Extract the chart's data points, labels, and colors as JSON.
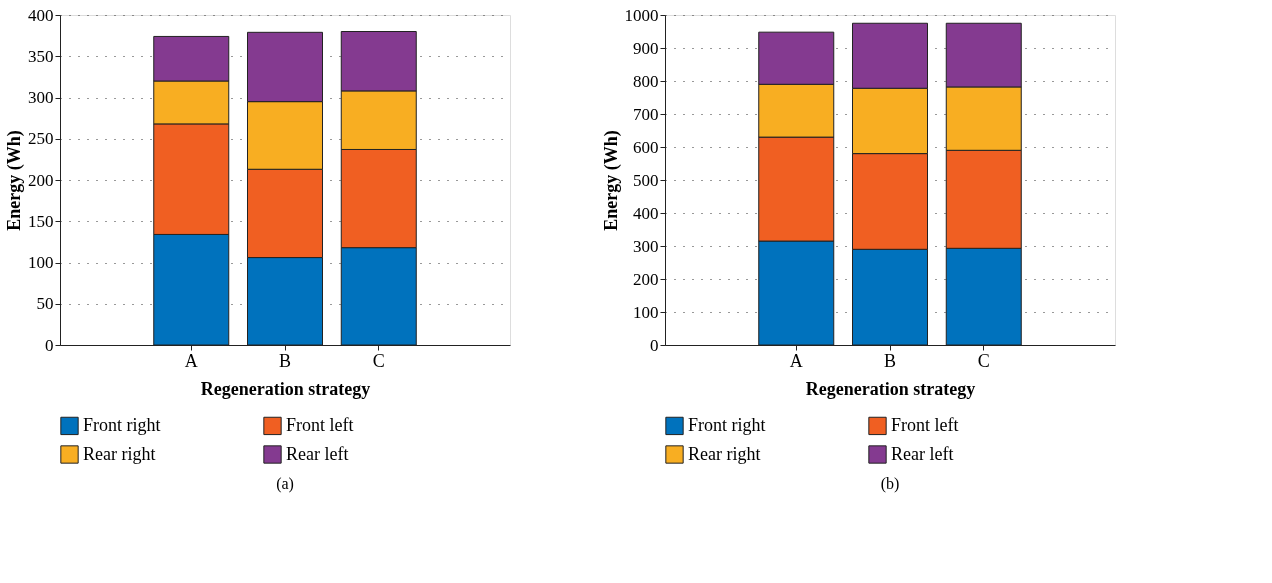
{
  "chart_data": [
    {
      "type": "bar",
      "stacked": true,
      "xlabel": "Regeneration strategy",
      "ylabel": "Energy (Wh)",
      "categories": [
        "A",
        "B",
        "C"
      ],
      "ylim": [
        0,
        400
      ],
      "yticks": [
        0,
        50,
        100,
        150,
        200,
        250,
        300,
        350,
        400
      ],
      "grid": "y",
      "legend": "bottom",
      "annotations": [
        "(a)"
      ],
      "series": [
        {
          "name": "Front right",
          "color": "#0072bd",
          "values": [
            134,
            106,
            118
          ]
        },
        {
          "name": "Front left",
          "color": "#f05f22",
          "values": [
            134,
            107,
            119
          ]
        },
        {
          "name": "Rear right",
          "color": "#f8ae22",
          "values": [
            52,
            82,
            71
          ]
        },
        {
          "name": "Rear left",
          "color": "#843a90",
          "values": [
            54,
            84,
            72
          ]
        }
      ]
    },
    {
      "type": "bar",
      "stacked": true,
      "xlabel": "Regeneration strategy",
      "ylabel": "Energy (Wh)",
      "categories": [
        "A",
        "B",
        "C"
      ],
      "ylim": [
        0,
        1000
      ],
      "yticks": [
        0,
        100,
        200,
        300,
        400,
        500,
        600,
        700,
        800,
        900,
        1000
      ],
      "grid": "y",
      "legend": "bottom",
      "annotations": [
        "(b)"
      ],
      "series": [
        {
          "name": "Front right",
          "color": "#0072bd",
          "values": [
            315,
            290,
            293
          ]
        },
        {
          "name": "Front left",
          "color": "#f05f22",
          "values": [
            315,
            290,
            297
          ]
        },
        {
          "name": "Rear right",
          "color": "#f8ae22",
          "values": [
            160,
            198,
            192
          ]
        },
        {
          "name": "Rear left",
          "color": "#843a90",
          "values": [
            158,
            197,
            193
          ]
        }
      ]
    }
  ]
}
